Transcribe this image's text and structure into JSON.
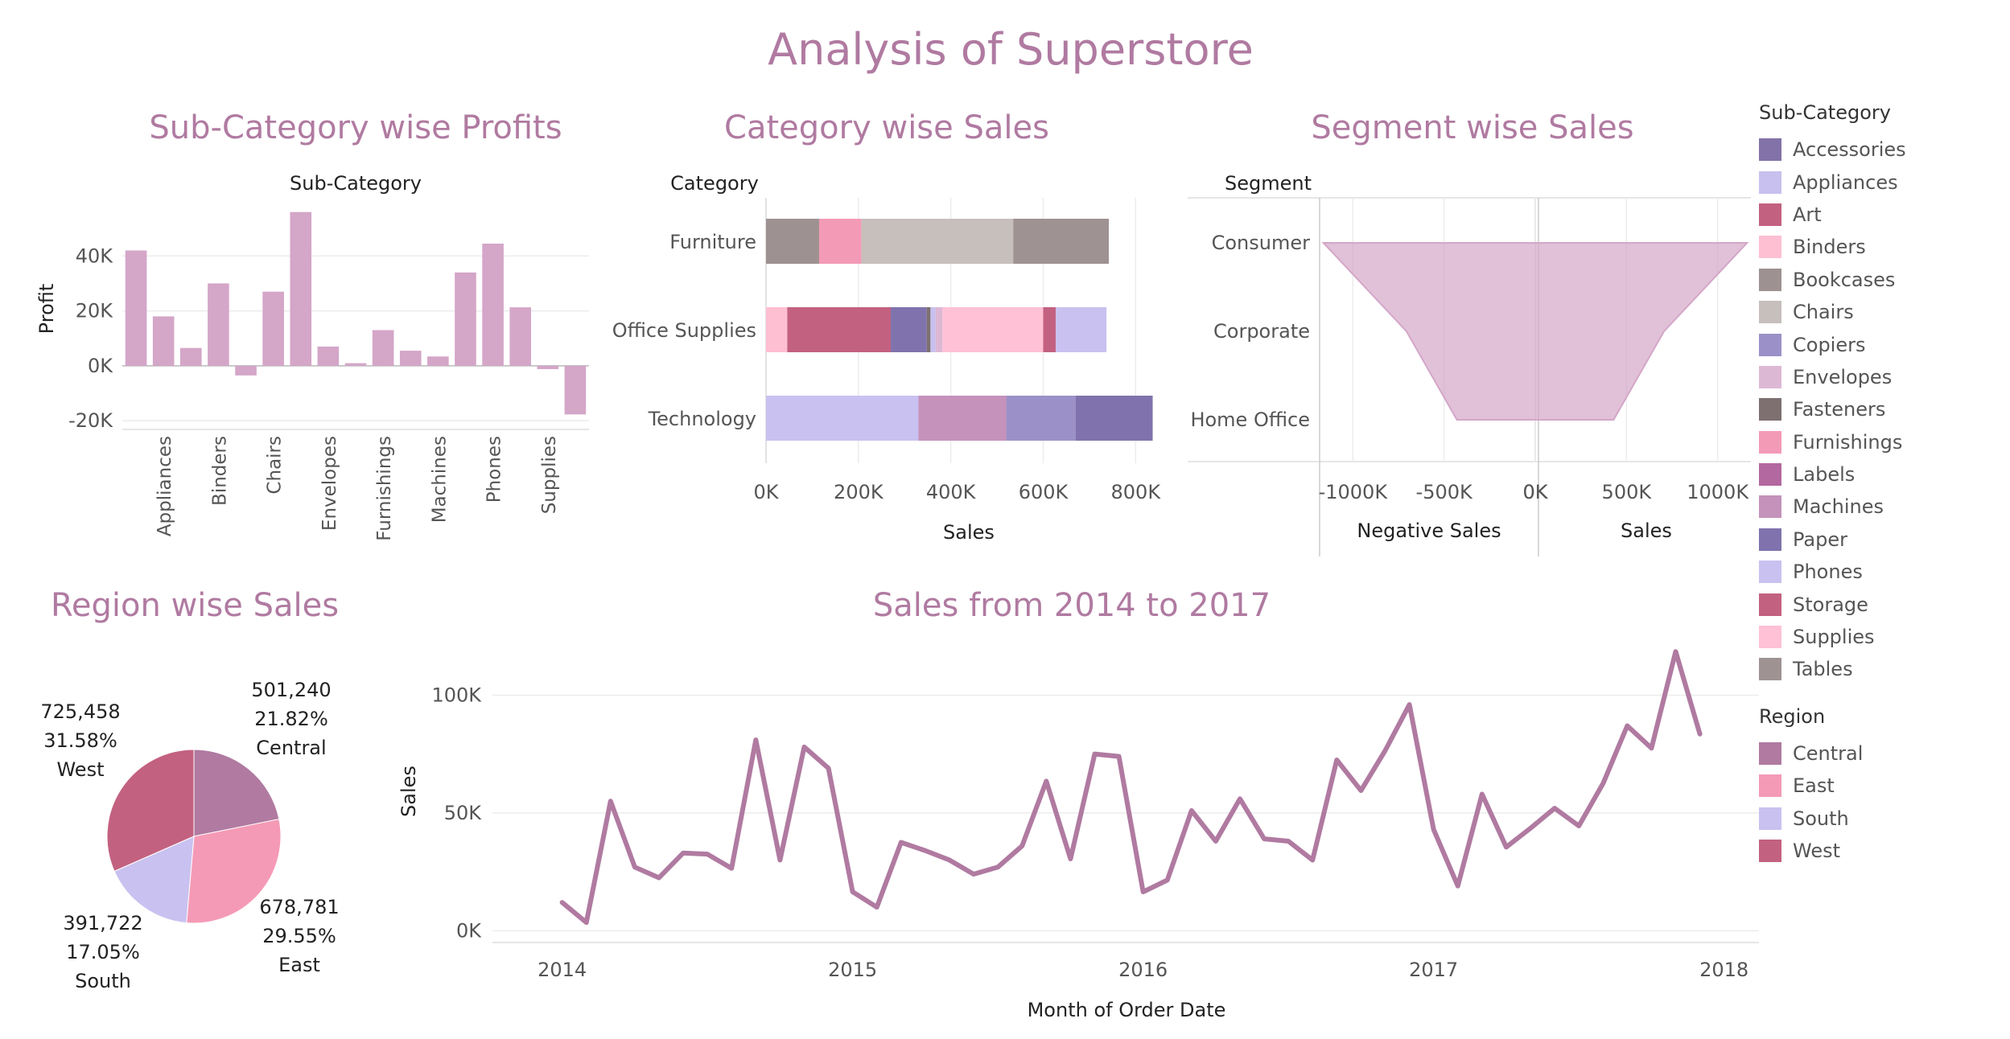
{
  "dashboard_title": "Analysis of Superstore",
  "colors": {
    "title": "#b07aa1",
    "bar_profit": "#d4a6c8",
    "line": "#b07aa1",
    "segment_area": "#d4a6c8"
  },
  "chart_data": [
    {
      "id": "subcategory-profits",
      "type": "bar",
      "title": "Sub-Category wise Profits",
      "column_header": "Sub-Category",
      "ylabel": "Profit",
      "ylim": [
        -22000,
        60000
      ],
      "yticks": [
        -20000,
        0,
        20000,
        40000
      ],
      "ytick_labels": [
        "-20K",
        "0K",
        "20K",
        "40K"
      ],
      "categories": [
        "Accessories",
        "Appliances",
        "Art",
        "Binders",
        "Bookcases",
        "Chairs",
        "Copiers",
        "Envelopes",
        "Fasteners",
        "Furnishings",
        "Labels",
        "Machines",
        "Paper",
        "Phones",
        "Storage",
        "Supplies",
        "Tables"
      ],
      "x_labels_shown": [
        "Appliances",
        "Binders",
        "Chairs",
        "Envelopes",
        "Furnishings",
        "Machines",
        "Phones",
        "Supplies"
      ],
      "values": [
        42000,
        18000,
        6500,
        30000,
        -3500,
        27000,
        56000,
        7000,
        950,
        13000,
        5500,
        3400,
        34000,
        44500,
        21300,
        -1200,
        -17700
      ]
    },
    {
      "id": "category-sales",
      "type": "bar",
      "orientation": "horizontal-stacked",
      "title": "Category wise Sales",
      "row_header": "Category",
      "xlabel": "Sales",
      "xlim": [
        0,
        850000
      ],
      "xticks": [
        0,
        200000,
        400000,
        600000,
        800000
      ],
      "xtick_labels": [
        "0K",
        "200K",
        "400K",
        "600K",
        "800K"
      ],
      "categories": [
        "Furniture",
        "Office Supplies",
        "Technology"
      ],
      "stacks": [
        [
          {
            "name": "Bookcases",
            "value": 114900
          },
          {
            "name": "Furnishings",
            "value": 91700
          },
          {
            "name": "Chairs",
            "value": 328500
          },
          {
            "name": "Tables",
            "value": 207000
          }
        ],
        [
          {
            "name": "Binders",
            "value": 46000
          },
          {
            "name": "Storage",
            "value": 224000
          },
          {
            "name": "Paper",
            "value": 78000
          },
          {
            "name": "Fasteners",
            "value": 8000
          },
          {
            "name": "Appliances",
            "value": 11000
          },
          {
            "name": "Envelopes",
            "value": 15000
          },
          {
            "name": "Supplies",
            "value": 218000
          },
          {
            "name": "Art",
            "value": 27000
          },
          {
            "name": "Phones",
            "value": 110000
          }
        ],
        [
          {
            "name": "Phones",
            "value": 330000
          },
          {
            "name": "Machines",
            "value": 190000
          },
          {
            "name": "Copiers",
            "value": 150000
          },
          {
            "name": "Paper",
            "value": 167000
          }
        ]
      ]
    },
    {
      "id": "segment-sales",
      "type": "area",
      "orientation": "mirrored-funnel",
      "title": "Segment wise Sales",
      "row_header": "Segment",
      "left_xlabel": "Negative Sales",
      "right_xlabel": "Sales",
      "left_xticks": [
        -1000000,
        -500000,
        0
      ],
      "left_xtick_labels": [
        "-1000K",
        "-500K",
        "0K"
      ],
      "right_xticks": [
        0,
        500000,
        1000000
      ],
      "right_xtick_labels": [
        "0K",
        "500K",
        "1000K"
      ],
      "xlim": [
        1200000
      ],
      "categories": [
        "Consumer",
        "Corporate",
        "Home Office"
      ],
      "values": [
        1161401,
        706146,
        429653
      ]
    },
    {
      "id": "region-sales",
      "type": "pie",
      "title": "Region wise Sales",
      "categories": [
        "Central",
        "East",
        "South",
        "West"
      ],
      "values": [
        501240,
        678781,
        391722,
        725458
      ],
      "value_labels": [
        "501,240",
        "678,781",
        "391,722",
        "725,458"
      ],
      "percent_labels": [
        "21.82%",
        "29.55%",
        "17.05%",
        "31.58%"
      ]
    },
    {
      "id": "sales-trend",
      "type": "line",
      "title": "Sales from 2014 to 2017",
      "xlabel": "Month of Order Date",
      "ylabel": "Sales",
      "ylim": [
        -5000,
        122000
      ],
      "yticks": [
        0,
        50000,
        100000
      ],
      "ytick_labels": [
        "0K",
        "50K",
        "100K"
      ],
      "xlim": [
        2013.76,
        2018.12
      ],
      "xticks": [
        2014,
        2015,
        2016,
        2017,
        2018
      ],
      "xtick_labels": [
        "2014",
        "2015",
        "2016",
        "2017",
        "2018"
      ],
      "x_start": "2014-01",
      "x_end": "2017-12",
      "values": [
        12000,
        3500,
        55000,
        27000,
        22500,
        33000,
        32500,
        26500,
        81000,
        30000,
        78000,
        69000,
        16500,
        10000,
        37500,
        34000,
        30000,
        24000,
        27000,
        36000,
        63500,
        30500,
        75000,
        74000,
        16500,
        21500,
        51000,
        38000,
        56000,
        39000,
        38000,
        30000,
        72500,
        59500,
        76500,
        96000,
        43000,
        19000,
        58000,
        35500,
        43500,
        52000,
        44500,
        62500,
        87000,
        77500,
        118500,
        83500
      ]
    }
  ],
  "legends": {
    "subcategory": {
      "title": "Sub-Category",
      "items": [
        {
          "label": "Accessories",
          "color": "#8272a8"
        },
        {
          "label": "Appliances",
          "color": "#c8c0ee"
        },
        {
          "label": "Art",
          "color": "#c36180"
        },
        {
          "label": "Binders",
          "color": "#ffbfd2"
        },
        {
          "label": "Bookcases",
          "color": "#9e9191"
        },
        {
          "label": "Chairs",
          "color": "#c6bfbc"
        },
        {
          "label": "Copiers",
          "color": "#9b91c8"
        },
        {
          "label": "Envelopes",
          "color": "#ddb8d5"
        },
        {
          "label": "Fasteners",
          "color": "#7e7070"
        },
        {
          "label": "Furnishings",
          "color": "#f39ab7"
        },
        {
          "label": "Labels",
          "color": "#b3689f"
        },
        {
          "label": "Machines",
          "color": "#c492bb"
        },
        {
          "label": "Paper",
          "color": "#8073ad"
        },
        {
          "label": "Phones",
          "color": "#c9c1f0"
        },
        {
          "label": "Storage",
          "color": "#c36180"
        },
        {
          "label": "Supplies",
          "color": "#ffc1d5"
        },
        {
          "label": "Tables",
          "color": "#9f9292"
        }
      ]
    },
    "region": {
      "title": "Region",
      "items": [
        {
          "label": "Central",
          "color": "#b07aa1"
        },
        {
          "label": "East",
          "color": "#f59ab6"
        },
        {
          "label": "South",
          "color": "#c9c1f0"
        },
        {
          "label": "West",
          "color": "#c36180"
        }
      ]
    }
  }
}
